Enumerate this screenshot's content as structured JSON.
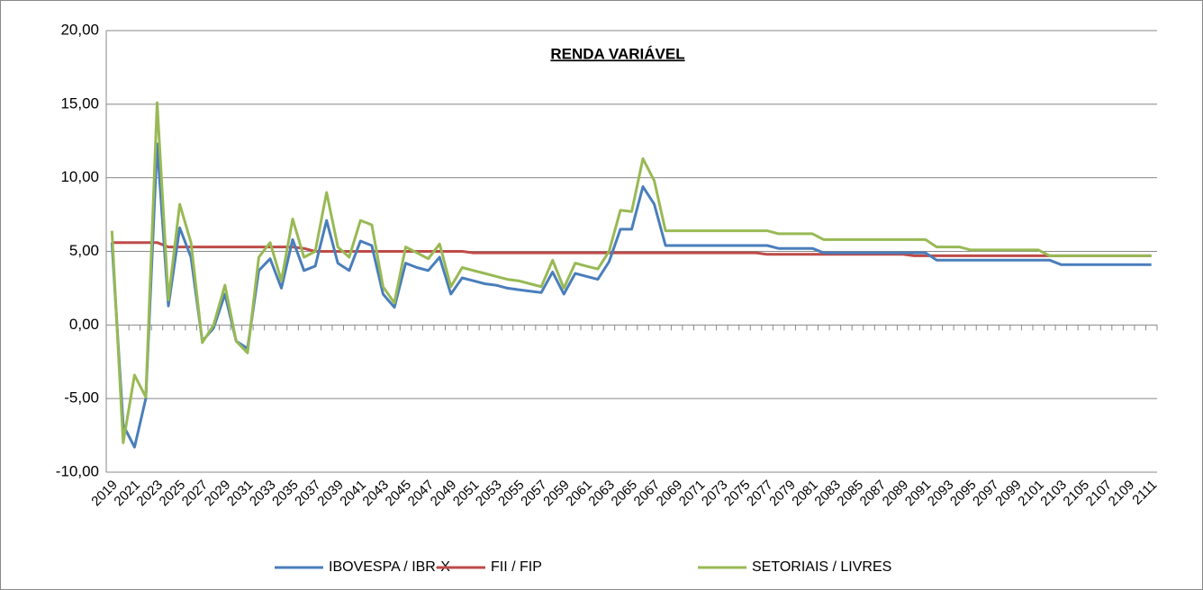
{
  "chart_data": {
    "type": "line",
    "title": "RENDA VARIÁVEL",
    "categories": [
      "2019",
      null,
      "2021",
      null,
      "2023",
      null,
      "2025",
      null,
      "2027",
      null,
      "2029",
      null,
      "2031",
      null,
      "2033",
      null,
      "2035",
      null,
      "2037",
      null,
      "2039",
      null,
      "2041",
      null,
      "2043",
      null,
      "2045",
      null,
      "2047",
      null,
      "2049",
      null,
      "2051",
      null,
      "2053",
      null,
      "2055",
      null,
      "2057",
      null,
      "2059",
      null,
      "2061",
      null,
      "2063",
      null,
      "2065",
      null,
      "2067",
      null,
      "2069",
      null,
      "2071",
      null,
      "2073",
      null,
      "2075",
      null,
      "2077",
      null,
      "2079",
      null,
      "2081",
      null,
      "2083",
      null,
      "2085",
      null,
      "2087",
      null,
      "2089",
      null,
      "2091",
      null,
      "2093",
      null,
      "2095",
      null,
      "2097",
      null,
      "2099",
      null,
      "2101",
      null,
      "2103",
      null,
      "2105",
      null,
      "2107",
      null,
      "2109",
      null,
      "2111"
    ],
    "series": [
      {
        "name": "IBOVESPA / IBR-X",
        "color": "#4a7ebb",
        "values": [
          5.6,
          -6.8,
          -8.3,
          -5.0,
          12.3,
          1.3,
          6.6,
          4.6,
          -1.1,
          -0.2,
          2.1,
          -1.1,
          -1.6,
          3.7,
          4.5,
          2.5,
          5.8,
          3.7,
          4.0,
          7.1,
          4.2,
          3.7,
          5.7,
          5.4,
          2.1,
          1.2,
          4.2,
          3.9,
          3.7,
          4.6,
          2.1,
          3.2,
          3.0,
          2.8,
          2.7,
          2.5,
          2.4,
          2.3,
          2.2,
          3.6,
          2.1,
          3.5,
          3.3,
          3.1,
          4.3,
          6.5,
          6.5,
          9.4,
          8.2,
          5.4,
          5.4,
          5.4,
          5.4,
          5.4,
          5.4,
          5.4,
          5.4,
          5.4,
          5.4,
          5.2,
          5.2,
          5.2,
          5.2,
          4.9,
          4.9,
          4.9,
          4.9,
          4.9,
          4.9,
          4.9,
          4.9,
          4.9,
          4.9,
          4.4,
          4.4,
          4.4,
          4.4,
          4.4,
          4.4,
          4.4,
          4.4,
          4.4,
          4.4,
          4.4,
          4.1,
          4.1,
          4.1,
          4.1,
          4.1,
          4.1,
          4.1,
          4.1,
          4.1
        ]
      },
      {
        "name": "FII / FIP",
        "color": "#be4b48",
        "values": [
          5.6,
          5.6,
          5.6,
          5.6,
          5.6,
          5.3,
          5.3,
          5.3,
          5.3,
          5.3,
          5.3,
          5.3,
          5.3,
          5.3,
          5.3,
          5.3,
          5.3,
          5.2,
          5.0,
          5.0,
          5.0,
          5.0,
          5.0,
          5.0,
          5.0,
          5.0,
          5.0,
          5.0,
          5.0,
          5.0,
          5.0,
          5.0,
          4.9,
          4.9,
          4.9,
          4.9,
          4.9,
          4.9,
          4.9,
          4.9,
          4.9,
          4.9,
          4.9,
          4.9,
          4.9,
          4.9,
          4.9,
          4.9,
          4.9,
          4.9,
          4.9,
          4.9,
          4.9,
          4.9,
          4.9,
          4.9,
          4.9,
          4.9,
          4.8,
          4.8,
          4.8,
          4.8,
          4.8,
          4.8,
          4.8,
          4.8,
          4.8,
          4.8,
          4.8,
          4.8,
          4.8,
          4.7,
          4.7,
          4.7,
          4.7,
          4.7,
          4.7,
          4.7,
          4.7,
          4.7,
          4.7,
          4.7,
          4.7,
          4.7,
          4.7,
          4.7,
          4.7,
          4.7,
          4.7,
          4.7,
          4.7,
          4.7,
          4.7
        ]
      },
      {
        "name": "SETORIAIS / LIVRES",
        "color": "#98b954",
        "values": [
          6.4,
          -8.0,
          -3.4,
          -4.9,
          15.1,
          1.7,
          8.2,
          5.6,
          -1.2,
          0.0,
          2.7,
          -1.1,
          -1.9,
          4.6,
          5.6,
          3.0,
          7.2,
          4.6,
          5.0,
          9.0,
          5.3,
          4.6,
          7.1,
          6.8,
          2.6,
          1.5,
          5.3,
          4.9,
          4.5,
          5.5,
          2.6,
          3.9,
          3.7,
          3.5,
          3.3,
          3.1,
          3.0,
          2.8,
          2.6,
          4.4,
          2.5,
          4.2,
          4.0,
          3.8,
          5.0,
          7.8,
          7.7,
          11.3,
          9.8,
          6.4,
          6.4,
          6.4,
          6.4,
          6.4,
          6.4,
          6.4,
          6.4,
          6.4,
          6.4,
          6.2,
          6.2,
          6.2,
          6.2,
          5.8,
          5.8,
          5.8,
          5.8,
          5.8,
          5.8,
          5.8,
          5.8,
          5.8,
          5.8,
          5.3,
          5.3,
          5.3,
          5.1,
          5.1,
          5.1,
          5.1,
          5.1,
          5.1,
          5.1,
          4.7,
          4.7,
          4.7,
          4.7,
          4.7,
          4.7,
          4.7,
          4.7,
          4.7,
          4.7
        ]
      }
    ],
    "ylim": [
      -10,
      20
    ],
    "yticks": [
      {
        "value": -10,
        "label": "-10,00"
      },
      {
        "value": -5,
        "label": "-5,00"
      },
      {
        "value": 0,
        "label": "0,00"
      },
      {
        "value": 5,
        "label": "5,00"
      },
      {
        "value": 10,
        "label": "10,00"
      },
      {
        "value": 15,
        "label": "15,00"
      },
      {
        "value": 20,
        "label": "20,00"
      }
    ],
    "grid": true,
    "legend": "bottom"
  }
}
